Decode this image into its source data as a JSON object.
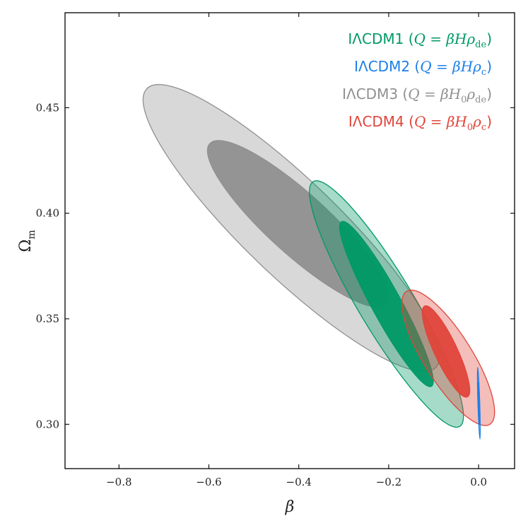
{
  "chart_data": {
    "type": "contour",
    "xlabel": "β",
    "ylabel": "Ωm",
    "ylabel_main": "Ω",
    "ylabel_sub": "m",
    "xlim": [
      -0.92,
      0.08
    ],
    "ylim": [
      0.279,
      0.495
    ],
    "xticks": [
      -0.8,
      -0.6,
      -0.4,
      -0.2,
      0.0
    ],
    "xtick_labels": [
      "−0.8",
      "−0.6",
      "−0.4",
      "−0.2",
      "0.0"
    ],
    "yticks": [
      0.3,
      0.35,
      0.4,
      0.45
    ],
    "ytick_labels": [
      "0.30",
      "0.35",
      "0.40",
      "0.45"
    ],
    "grid": false,
    "legend_position": "top-right",
    "series": [
      {
        "name": "IΛCDM1 (Q = βHρde)",
        "color": "#009966",
        "center": [
          -0.205,
          0.357
        ],
        "outer_endpoints": [
          [
            -0.368,
            0.415
          ],
          [
            -0.042,
            0.299
          ]
        ],
        "outer_half_width": 0.025,
        "inner_endpoints": [
          [
            -0.305,
            0.396
          ],
          [
            -0.105,
            0.318
          ]
        ],
        "inner_half_width": 0.014
      },
      {
        "name": "IΛCDM2 (Q = βHρc)",
        "color": "#1b7fe8",
        "center": [
          0.001,
          0.31
        ],
        "outer_endpoints": [
          [
            -0.002,
            0.327
          ],
          [
            0.003,
            0.293
          ]
        ],
        "outer_half_width": 0.0022,
        "inner_endpoints": [
          [
            -0.001,
            0.32
          ],
          [
            0.002,
            0.3
          ]
        ],
        "inner_half_width": 0.001
      },
      {
        "name": "IΛCDM3 (Q = βH0ρde)",
        "color": "#909090",
        "center": [
          -0.431,
          0.387
        ],
        "outer_endpoints": [
          [
            -0.738,
            0.459
          ],
          [
            -0.095,
            0.327
          ]
        ],
        "outer_half_width": 0.031,
        "inner_endpoints": [
          [
            -0.598,
            0.433
          ],
          [
            -0.205,
            0.357
          ]
        ],
        "inner_half_width": 0.019
      },
      {
        "name": "IΛCDM4 (Q = βH0ρc)",
        "color": "#e0453a",
        "center": [
          -0.068,
          0.327
        ],
        "outer_endpoints": [
          [
            -0.16,
            0.363
          ],
          [
            0.025,
            0.3
          ]
        ],
        "outer_half_width": 0.021,
        "inner_endpoints": [
          [
            -0.12,
            0.356
          ],
          [
            -0.025,
            0.313
          ]
        ],
        "inner_half_width": 0.012
      }
    ],
    "legend": [
      {
        "prefix": "IΛCDM1 (",
        "q": "Q",
        "eq": " = ",
        "beta": "β",
        "h": "H",
        "h_sub": "",
        "rho": "ρ",
        "rho_sub": "de",
        "suffix": ")",
        "color": "#009966"
      },
      {
        "prefix": "IΛCDM2 (",
        "q": "Q",
        "eq": " = ",
        "beta": "β",
        "h": "H",
        "h_sub": "",
        "rho": "ρ",
        "rho_sub": "c",
        "suffix": ")",
        "color": "#1b7fe8"
      },
      {
        "prefix": "IΛCDM3 (",
        "q": "Q",
        "eq": " = ",
        "beta": "β",
        "h": "H",
        "h_sub": "0",
        "rho": "ρ",
        "rho_sub": "de",
        "suffix": ")",
        "color": "#909090"
      },
      {
        "prefix": "IΛCDM4 (",
        "q": "Q",
        "eq": " = ",
        "beta": "β",
        "h": "H",
        "h_sub": "0",
        "rho": "ρ",
        "rho_sub": "c",
        "suffix": ")",
        "color": "#e0453a"
      }
    ]
  }
}
